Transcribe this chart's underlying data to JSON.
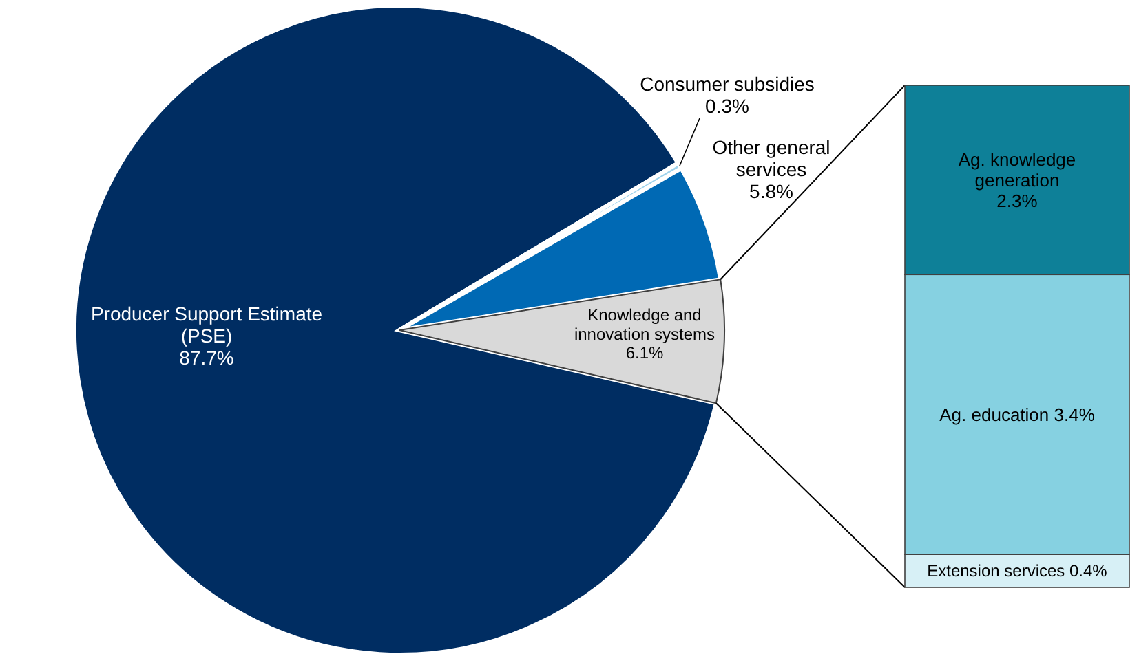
{
  "chart_data": [
    {
      "type": "pie",
      "categories": [
        "Producer Support Estimate (PSE)",
        "Consumer subsidies",
        "Other general services",
        "Knowledge and innovation systems"
      ],
      "values": [
        87.7,
        0.3,
        5.8,
        6.1
      ],
      "value_labels": [
        "87.7%",
        "0.3%",
        "5.8%",
        "6.1%"
      ],
      "colors": [
        "#002d62",
        "#9fd3ec",
        "#0069b4",
        "#d9d9d9"
      ]
    },
    {
      "type": "bar",
      "stacked": true,
      "categories": [
        null
      ],
      "series": [
        {
          "name": "Extension services",
          "color": "#d7f0f6",
          "values": [
            0.4
          ],
          "value_labels": [
            "0.4%"
          ]
        },
        {
          "name": "Ag. education",
          "color": "#86d1e1",
          "values": [
            3.4
          ],
          "value_labels": [
            "3.4%"
          ]
        },
        {
          "name": "Ag. knowledge generation",
          "color": "#0e8098",
          "values": [
            2.3
          ],
          "value_labels": [
            "2.3%"
          ]
        }
      ]
    }
  ]
}
